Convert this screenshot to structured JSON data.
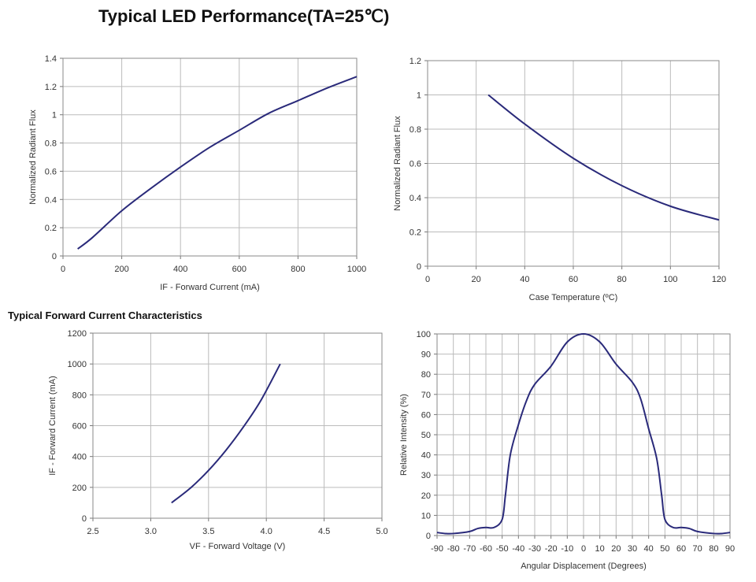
{
  "title": "Typical LED Performance(TA=25℃)",
  "subtitle": "Typical Forward Current Characteristics",
  "line_color": "#2a2a7a",
  "chart_data": [
    {
      "type": "line",
      "xlabel": "IF - Forward Current (mA)",
      "ylabel": "Normalized Radiant Flux",
      "xlim": [
        0,
        1000
      ],
      "ylim": [
        0,
        1.4
      ],
      "xticks": [
        "0",
        "200",
        "400",
        "600",
        "800",
        "1000"
      ],
      "yticks": [
        "0",
        "0.2",
        "0.4",
        "0.6",
        "0.8",
        "1",
        "1.2",
        "1.4"
      ],
      "grid": true,
      "x": [
        50,
        100,
        200,
        300,
        400,
        500,
        600,
        700,
        800,
        900,
        1000
      ],
      "y": [
        0.05,
        0.13,
        0.32,
        0.48,
        0.63,
        0.77,
        0.89,
        1.01,
        1.1,
        1.19,
        1.27
      ]
    },
    {
      "type": "line",
      "xlabel": "Case Temperature (ºC)",
      "ylabel": "Normalized Radiant Flux",
      "xlim": [
        0,
        120
      ],
      "ylim": [
        0,
        1.2
      ],
      "xticks": [
        "0",
        "20",
        "40",
        "60",
        "80",
        "100",
        "120"
      ],
      "yticks": [
        "0",
        "0.2",
        "0.4",
        "0.6",
        "0.8",
        "1",
        "1.2"
      ],
      "grid": true,
      "x": [
        25,
        40,
        60,
        80,
        100,
        120
      ],
      "y": [
        1.0,
        0.83,
        0.63,
        0.47,
        0.35,
        0.27
      ]
    },
    {
      "type": "line",
      "xlabel": "VF - Forward Voltage (V)",
      "ylabel": "IF - Forward Current (mA)",
      "xlim": [
        2.5,
        5.0
      ],
      "ylim": [
        0,
        1200
      ],
      "xticks": [
        "2.5",
        "3.0",
        "3.5",
        "4.0",
        "4.5",
        "5.0"
      ],
      "yticks": [
        "0",
        "200",
        "400",
        "600",
        "800",
        "1000",
        "1200"
      ],
      "grid": true,
      "x": [
        3.18,
        3.35,
        3.5,
        3.65,
        3.8,
        3.95,
        4.12
      ],
      "y": [
        100,
        200,
        310,
        440,
        590,
        760,
        1000
      ]
    },
    {
      "type": "line",
      "xlabel": "Angular Displacement (Degrees)",
      "ylabel": "Relative Intensity (%)",
      "xlim": [
        -90,
        90
      ],
      "ylim": [
        0,
        100
      ],
      "xticks": [
        "-90",
        "-80",
        "-70",
        "-60",
        "-50",
        "-40",
        "-30",
        "-20",
        "-10",
        "0",
        "10",
        "20",
        "30",
        "40",
        "50",
        "60",
        "70",
        "80",
        "90"
      ],
      "yticks": [
        "0",
        "10",
        "20",
        "30",
        "40",
        "50",
        "60",
        "70",
        "80",
        "90",
        "100"
      ],
      "grid": true,
      "x": [
        -90,
        -85,
        -80,
        -70,
        -65,
        -60,
        -55,
        -50,
        -48,
        -45,
        -40,
        -35,
        -30,
        -20,
        -10,
        0,
        10,
        20,
        30,
        35,
        40,
        45,
        48,
        50,
        55,
        60,
        65,
        70,
        80,
        85,
        90
      ],
      "y": [
        1.5,
        1,
        1,
        2,
        3.5,
        4,
        4,
        8,
        20,
        40,
        55,
        67,
        75,
        84,
        96,
        100,
        96,
        85,
        76,
        68,
        53,
        38,
        20,
        8,
        4,
        4,
        3.5,
        2,
        1,
        1,
        1.5
      ]
    }
  ]
}
